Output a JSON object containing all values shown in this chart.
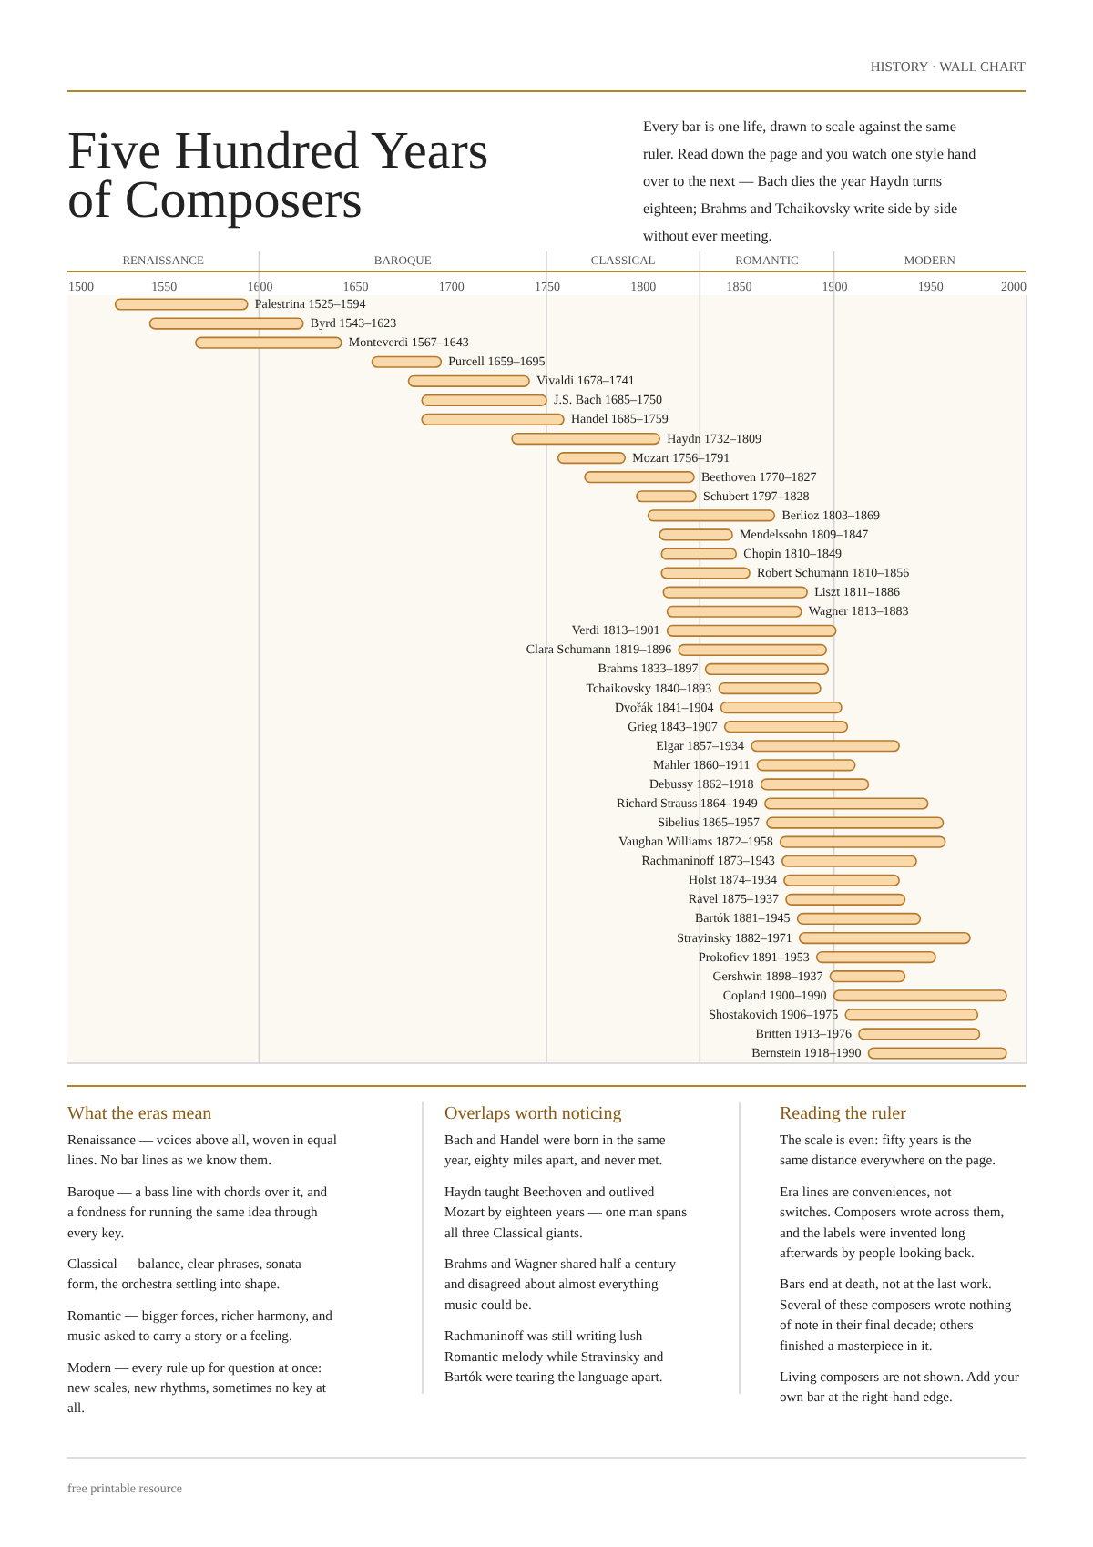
{
  "chart_data": {
    "type": "bar",
    "orientation": "horizontal",
    "title": "Five Hundred Years of Composers",
    "subtitle": "Every bar is one life, drawn to scale against the same ruler. Read down the page and you watch one style hand over to the next — Bach dies the year Haydn turns eighteen; Brahms and Tchaikovsky write side by side without ever meeting.",
    "categories": [
      "Palestrina",
      "Byrd",
      "Monteverdi",
      "Purcell",
      "Vivaldi",
      "J.S. Bach",
      "Handel",
      "Haydn",
      "Mozart",
      "Beethoven",
      "Schubert",
      "Berlioz",
      "Mendelssohn",
      "Chopin",
      "Robert Schumann",
      "Liszt",
      "Wagner",
      "Verdi",
      "Clara Schumann",
      "Brahms",
      "Tchaikovsky",
      "Dvořák",
      "Grieg",
      "Elgar",
      "Mahler",
      "Debussy",
      "Richard Strauss",
      "Sibelius",
      "Vaughan Williams",
      "Rachmaninoff",
      "Holst",
      "Ravel",
      "Bartók",
      "Stravinsky",
      "Prokofiev",
      "Gershwin",
      "Copland",
      "Shostakovich",
      "Britten",
      "Bernstein"
    ],
    "base": [
      1525,
      1543,
      1567,
      1659,
      1678,
      1685,
      1685,
      1732,
      1756,
      1770,
      1797,
      1803,
      1809,
      1810,
      1810,
      1811,
      1813,
      1813,
      1819,
      1833,
      1840,
      1841,
      1843,
      1857,
      1860,
      1862,
      1864,
      1865,
      1872,
      1873,
      1874,
      1875,
      1881,
      1882,
      1891,
      1898,
      1900,
      1906,
      1913,
      1918
    ],
    "values": [
      69,
      80,
      76,
      36,
      63,
      65,
      74,
      77,
      35,
      57,
      31,
      66,
      38,
      39,
      46,
      75,
      70,
      88,
      77,
      64,
      53,
      63,
      64,
      77,
      51,
      56,
      85,
      92,
      86,
      70,
      60,
      62,
      64,
      89,
      62,
      39,
      90,
      69,
      63,
      72
    ],
    "value_labels": [
      "1525–1594",
      "1543–1623",
      "1567–1643",
      "1659–1695",
      "1678–1741",
      "1685–1750",
      "1685–1759",
      "1732–1809",
      "1756–1791",
      "1770–1827",
      "1797–1828",
      "1803–1869",
      "1809–1847",
      "1810–1849",
      "1810–1856",
      "1811–1886",
      "1813–1883",
      "1813–1901",
      "1819–1896",
      "1833–1897",
      "1840–1893",
      "1841–1904",
      "1843–1907",
      "1857–1934",
      "1860–1911",
      "1862–1918",
      "1864–1949",
      "1865–1957",
      "1872–1958",
      "1873–1943",
      "1874–1934",
      "1875–1937",
      "1881–1945",
      "1882–1971",
      "1891–1953",
      "1898–1937",
      "1900–1990",
      "1906–1975",
      "1913–1976",
      "1918–1990"
    ],
    "color": "#f9d8aa",
    "xlim": [
      1500,
      2000
    ],
    "xticks": [
      1500,
      1550,
      1600,
      1650,
      1700,
      1750,
      1800,
      1850,
      1900,
      1950,
      2000
    ],
    "tick_labels": "x",
    "ref_lines": [
      {
        "axis": "x",
        "value": 1600,
        "color": "#d4d4d4"
      },
      {
        "axis": "x",
        "value": 1750,
        "color": "#d4d4d4"
      },
      {
        "axis": "x",
        "value": 1830,
        "color": "#d4d4d4"
      },
      {
        "axis": "x",
        "value": 1900,
        "color": "#d4d4d4"
      }
    ],
    "bands": [
      {
        "axis": "x",
        "from": 1500,
        "to": 1600,
        "label": "RENAISSANCE",
        "color": "#fcf9f3"
      },
      {
        "axis": "x",
        "from": 1600,
        "to": 1750,
        "label": "BAROQUE",
        "color": "#fcf9f3"
      },
      {
        "axis": "x",
        "from": 1750,
        "to": 1830,
        "label": "CLASSICAL",
        "color": "#fcf9f3"
      },
      {
        "axis": "x",
        "from": 1830,
        "to": 1900,
        "label": "ROMANTIC",
        "color": "#fcf9f3"
      },
      {
        "axis": "x",
        "from": 1900,
        "to": 2000,
        "label": "MODERN",
        "color": "#fcf9f3"
      }
    ],
    "annotations": [
      "HISTORY · WALL CHART",
      "What the eras mean",
      "Renaissance — voices above all, woven in equal lines. No bar lines as we know them.",
      "Baroque — a bass line with chords over it, and a fondness for running the same idea through every key.",
      "Classical — balance, clear phrases, sonata form, the orchestra settling into shape.",
      "Romantic — bigger forces, richer harmony, and music asked to carry a story or a feeling.",
      "Modern — every rule up for question at once: new scales, new rhythms, sometimes no key at all.",
      "Overlaps worth noticing",
      "Bach and Handel were born in the same year, eighty miles apart, and never met.",
      "Haydn taught Beethoven and outlived Mozart by eighteen years — one man spans all three Classical giants.",
      "Brahms and Wagner shared half a century and disagreed about almost everything music could be.",
      "Rachmaninoff was still writing lush Romantic melody while Stravinsky and Bartók were tearing the language apart.",
      "Reading the ruler",
      "The scale is even: fifty years is the same distance everywhere on the page.",
      "Era lines are conveniences, not switches. Composers wrote across them, and the labels were invented long afterwards by people looking back.",
      "Bars end at death, not at the last work. Several of these composers wrote nothing of note in their final decade; others finished a masterpiece in it.",
      "Living composers are not shown. Add your own bar at the right-hand edge.",
      "free printable resource"
    ]
  }
}
